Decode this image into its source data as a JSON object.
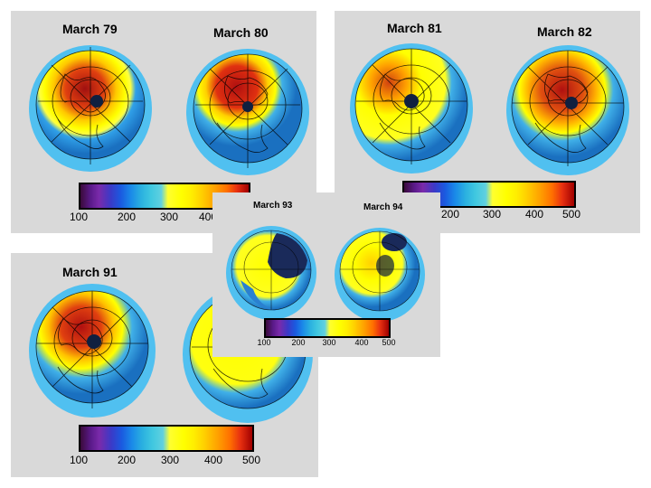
{
  "panels": [
    {
      "titles": [
        "March 79",
        "March 80"
      ],
      "scale": [
        "100",
        "200",
        "300",
        "400"
      ]
    },
    {
      "titles": [
        "March 81",
        "March 82"
      ],
      "scale": [
        "200",
        "300",
        "400",
        "500"
      ]
    },
    {
      "titles": [
        "March 91"
      ],
      "scale": [
        "100",
        "200",
        "300",
        "400",
        "500"
      ]
    },
    {
      "titles": [
        "March 93",
        "March 94"
      ],
      "scale": [
        "100",
        "200",
        "300",
        "400",
        "500"
      ]
    }
  ],
  "colors": {
    "panel_bg": "#d9d9d9",
    "ocean_blue": "#2a9ae0",
    "ring_blue": "#5ac8f0",
    "yellow": "#ffff00",
    "orange": "#ff8c1a",
    "dark_red": "#b01010",
    "dark_navy": "#1a2a5a"
  }
}
